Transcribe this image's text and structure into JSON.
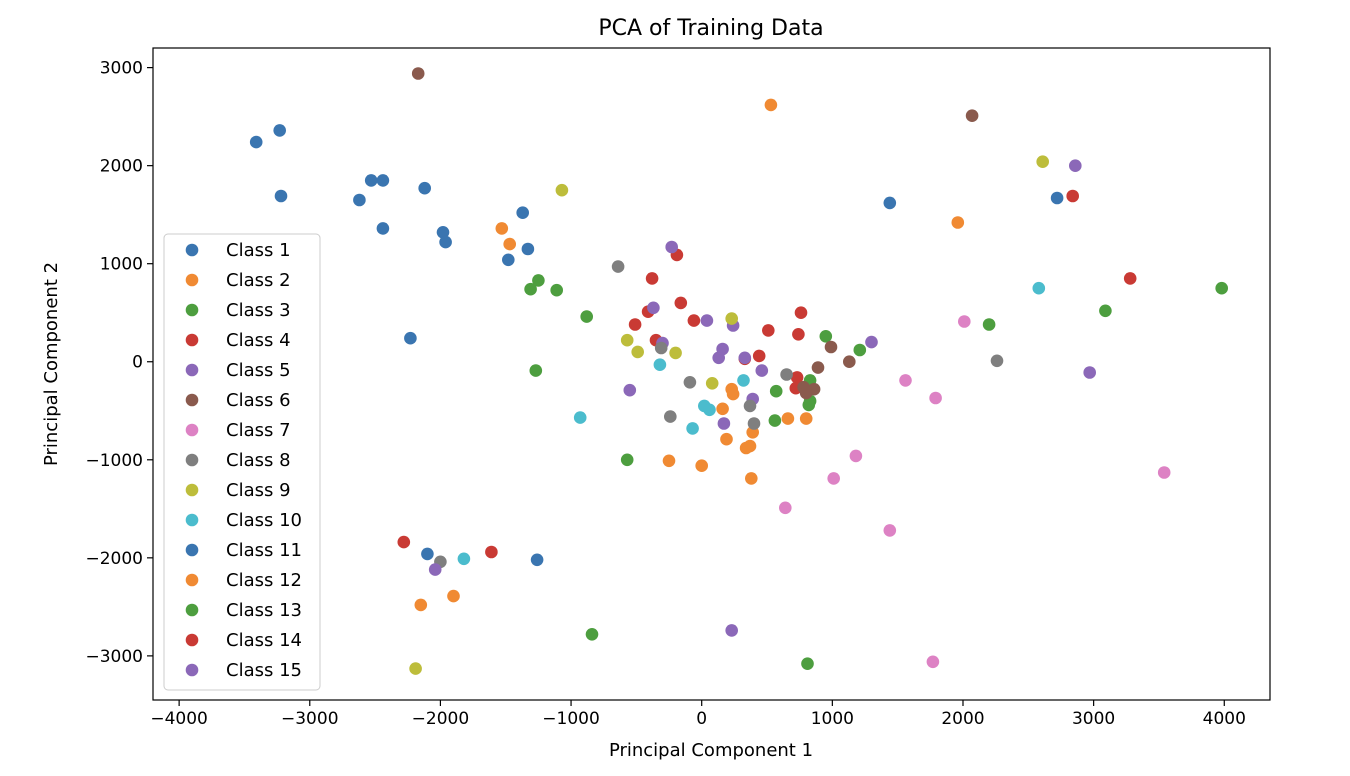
{
  "chart_data": {
    "type": "scatter",
    "title": "PCA of Training Data",
    "xlabel": "Principal Component 1",
    "ylabel": "Principal Component 2",
    "xlim": [
      -4200,
      4350
    ],
    "ylim": [
      -3450,
      3200
    ],
    "x_ticks": [
      -4000,
      -3000,
      -2000,
      -1000,
      0,
      1000,
      2000,
      3000,
      4000
    ],
    "y_ticks": [
      -3000,
      -2000,
      -1000,
      0,
      1000,
      2000,
      3000
    ],
    "x_tick_labels": [
      "−4000",
      "−3000",
      "−2000",
      "−1000",
      "0",
      "1000",
      "2000",
      "3000",
      "4000"
    ],
    "y_tick_labels": [
      "−3000",
      "−2000",
      "−1000",
      "0",
      "1000",
      "2000",
      "3000"
    ],
    "grid": false,
    "legend_position": "lower-left",
    "series": [
      {
        "name": "Class 1",
        "color": "#3a75b0",
        "points": [
          [
            -3410,
            2240
          ],
          [
            -3230,
            2360
          ],
          [
            -3220,
            1690
          ],
          [
            -2530,
            1850
          ],
          [
            -2440,
            1850
          ],
          [
            -2620,
            1650
          ],
          [
            -2440,
            1360
          ],
          [
            -2120,
            1770
          ],
          [
            -1980,
            1320
          ],
          [
            -1960,
            1220
          ],
          [
            -2230,
            240
          ],
          [
            -1370,
            1520
          ],
          [
            -1330,
            1150
          ],
          [
            -1480,
            1040
          ],
          [
            1440,
            1620
          ],
          [
            2720,
            1670
          ]
        ]
      },
      {
        "name": "Class 2",
        "color": "#f08a33",
        "points": [
          [
            -1530,
            1360
          ],
          [
            -1470,
            1200
          ],
          [
            530,
            2620
          ],
          [
            1960,
            1420
          ],
          [
            230,
            -280
          ],
          [
            240,
            -330
          ],
          [
            160,
            -480
          ],
          [
            800,
            -580
          ],
          [
            660,
            -580
          ],
          [
            390,
            -720
          ],
          [
            190,
            -790
          ],
          [
            370,
            -860
          ],
          [
            340,
            -880
          ],
          [
            -250,
            -1010
          ],
          [
            0,
            -1060
          ],
          [
            380,
            -1190
          ]
        ]
      },
      {
        "name": "Class 3",
        "color": "#4d9e3f",
        "points": [
          [
            -1310,
            740
          ],
          [
            -1250,
            830
          ],
          [
            -1110,
            730
          ],
          [
            -880,
            460
          ],
          [
            -1270,
            -90
          ],
          [
            -570,
            -1000
          ],
          [
            950,
            260
          ],
          [
            1210,
            120
          ],
          [
            2200,
            380
          ],
          [
            3090,
            520
          ],
          [
            3980,
            750
          ],
          [
            570,
            -300
          ],
          [
            830,
            -190
          ],
          [
            830,
            -400
          ],
          [
            820,
            -440
          ],
          [
            560,
            -600
          ]
        ]
      },
      {
        "name": "Class 4",
        "color": "#c93a34",
        "points": [
          [
            -380,
            850
          ],
          [
            -190,
            1090
          ],
          [
            -510,
            380
          ],
          [
            -410,
            510
          ],
          [
            -160,
            600
          ],
          [
            -60,
            420
          ],
          [
            760,
            500
          ],
          [
            740,
            280
          ],
          [
            510,
            320
          ],
          [
            440,
            60
          ],
          [
            330,
            30
          ],
          [
            -350,
            220
          ],
          [
            730,
            -160
          ],
          [
            720,
            -270
          ],
          [
            2840,
            1690
          ],
          [
            3280,
            850
          ]
        ]
      },
      {
        "name": "Class 5",
        "color": "#8b68b8",
        "points": [
          [
            -230,
            1170
          ],
          [
            -370,
            550
          ],
          [
            40,
            420
          ],
          [
            240,
            370
          ],
          [
            160,
            130
          ],
          [
            130,
            40
          ],
          [
            330,
            40
          ],
          [
            460,
            -90
          ],
          [
            1300,
            200
          ],
          [
            2860,
            2000
          ],
          [
            2970,
            -110
          ],
          [
            -550,
            -290
          ],
          [
            390,
            -380
          ],
          [
            170,
            -630
          ],
          [
            -300,
            190
          ],
          [
            230,
            -2740
          ]
        ]
      },
      {
        "name": "Class 6",
        "color": "#8a5a4d",
        "points": [
          [
            -2170,
            2940
          ],
          [
            2070,
            2510
          ],
          [
            990,
            150
          ],
          [
            1130,
            0
          ],
          [
            890,
            -60
          ],
          [
            860,
            -280
          ],
          [
            780,
            -260
          ],
          [
            800,
            -320
          ]
        ]
      },
      {
        "name": "Class 7",
        "color": "#dd82c4",
        "points": [
          [
            2010,
            410
          ],
          [
            1560,
            -190
          ],
          [
            1790,
            -370
          ],
          [
            1180,
            -960
          ],
          [
            1010,
            -1190
          ],
          [
            640,
            -1490
          ],
          [
            1440,
            -1720
          ],
          [
            1770,
            -3060
          ],
          [
            3540,
            -1130
          ]
        ]
      },
      {
        "name": "Class 8",
        "color": "#7f7f7f",
        "points": [
          [
            -640,
            970
          ],
          [
            -310,
            140
          ],
          [
            -90,
            -210
          ],
          [
            650,
            -130
          ],
          [
            370,
            -450
          ],
          [
            -240,
            -560
          ],
          [
            400,
            -630
          ],
          [
            -2000,
            -2040
          ],
          [
            2260,
            10
          ]
        ]
      },
      {
        "name": "Class 9",
        "color": "#bdbd3b",
        "points": [
          [
            -1070,
            1750
          ],
          [
            2610,
            2040
          ],
          [
            230,
            440
          ],
          [
            -570,
            220
          ],
          [
            -490,
            100
          ],
          [
            -200,
            90
          ],
          [
            80,
            -220
          ],
          [
            -2190,
            -3130
          ]
        ]
      },
      {
        "name": "Class 10",
        "color": "#4bbccd",
        "points": [
          [
            2580,
            750
          ],
          [
            -320,
            -30
          ],
          [
            320,
            -190
          ],
          [
            20,
            -450
          ],
          [
            60,
            -490
          ],
          [
            -70,
            -680
          ],
          [
            -930,
            -570
          ],
          [
            -1820,
            -2010
          ]
        ]
      },
      {
        "name": "Class 11",
        "color": "#3a75b0",
        "points": [
          [
            -2100,
            -1960
          ],
          [
            -1260,
            -2020
          ]
        ]
      },
      {
        "name": "Class 12",
        "color": "#f08a33",
        "points": [
          [
            -2150,
            -2480
          ],
          [
            -1900,
            -2390
          ]
        ]
      },
      {
        "name": "Class 13",
        "color": "#4d9e3f",
        "points": [
          [
            -840,
            -2780
          ],
          [
            810,
            -3080
          ]
        ]
      },
      {
        "name": "Class 14",
        "color": "#c93a34",
        "points": [
          [
            -2280,
            -1840
          ],
          [
            -1610,
            -1940
          ]
        ]
      },
      {
        "name": "Class 15",
        "color": "#8b68b8",
        "points": [
          [
            -2040,
            -2120
          ]
        ]
      }
    ]
  }
}
